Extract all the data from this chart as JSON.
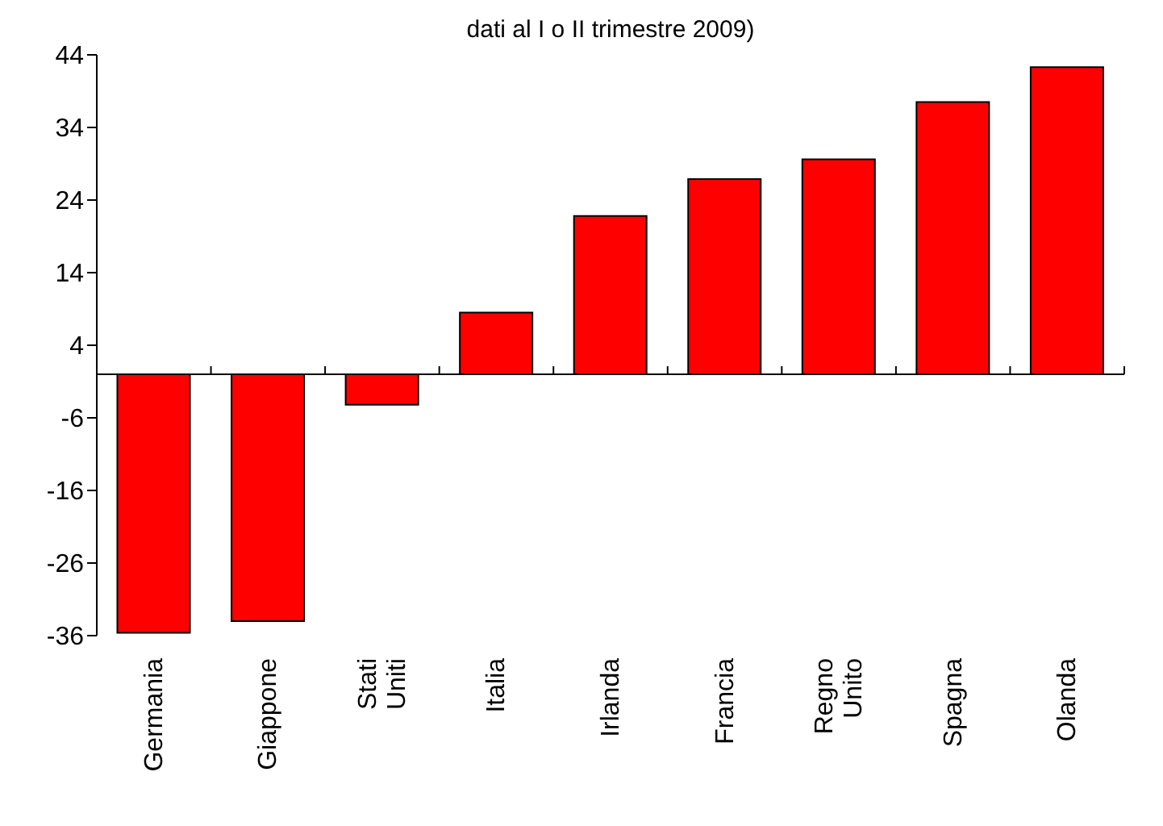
{
  "chart_data": {
    "type": "bar",
    "title": "dati al I o II trimestre 2009)",
    "categories": [
      "Germania",
      "Giappone",
      "Stati Uniti",
      "Italia",
      "Irlanda",
      "Francia",
      "Regno Unito",
      "Spagna",
      "Olanda"
    ],
    "values": [
      -35.6,
      -34,
      -4.2,
      8.5,
      21.8,
      26.9,
      29.6,
      37.5,
      42.3
    ],
    "color": "#ff0000",
    "ylim": [
      -36,
      44
    ],
    "yticks": [
      -36,
      -26,
      -16,
      -6,
      4,
      14,
      24,
      34,
      44
    ]
  }
}
